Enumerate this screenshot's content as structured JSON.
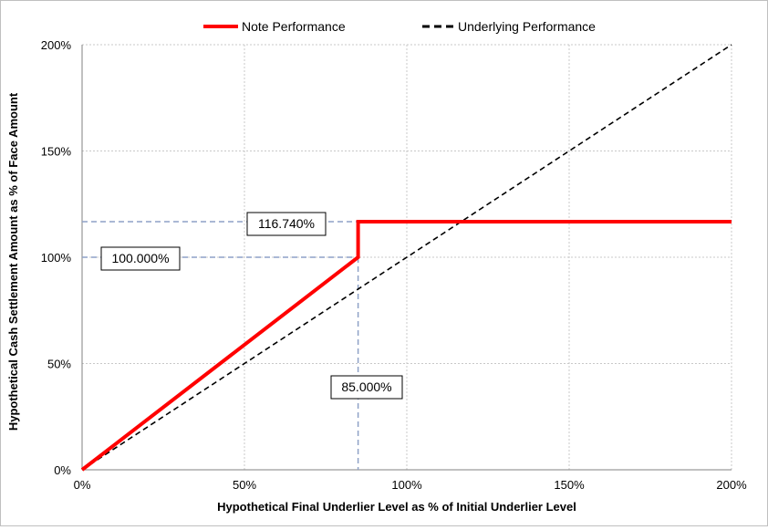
{
  "chart_data": {
    "type": "line",
    "xlabel": "Hypothetical Final Underlier Level as % of Initial Underlier Level",
    "ylabel": "Hypothetical Cash Settlement Amount as % of Face Amount",
    "xlim": [
      0,
      200
    ],
    "ylim": [
      0,
      200
    ],
    "x_ticks": [
      "0%",
      "50%",
      "100%",
      "150%",
      "200%"
    ],
    "y_ticks": [
      "0%",
      "50%",
      "100%",
      "150%",
      "200%"
    ],
    "grid": true,
    "legend_position": "top",
    "series": [
      {
        "name": "Note Performance",
        "color": "#ff0000",
        "style": "solid",
        "x": [
          0,
          85,
          85,
          200
        ],
        "y": [
          0,
          100,
          116.74,
          116.74
        ]
      },
      {
        "name": "Underlying Performance",
        "color": "#000000",
        "style": "dashed",
        "x": [
          0,
          200
        ],
        "y": [
          0,
          200
        ]
      }
    ],
    "annotations": [
      {
        "label": "116.740%",
        "value": 116.74
      },
      {
        "label": "100.000%",
        "value": 100
      },
      {
        "label": "85.000%",
        "value": 85
      }
    ],
    "reference_line_color": "#8ea1c7"
  }
}
